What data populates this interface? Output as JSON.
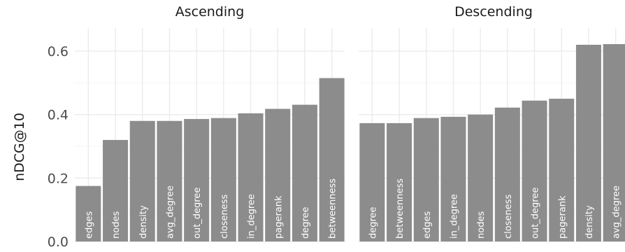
{
  "chart_data": {
    "type": "bar",
    "ylabel": "nDCG@10",
    "ylim": [
      0,
      0.65
    ],
    "yticks": [
      "0.0",
      "0.2",
      "0.4",
      "0.6"
    ],
    "bar_color": "#8c8c8c",
    "label_color": "#ffffff",
    "grid": true,
    "panels": [
      {
        "title": "Ascending",
        "categories": [
          "edges",
          "nodes",
          "density",
          "avg_degree",
          "out_degree",
          "closeness",
          "in_degree",
          "pagerank",
          "degree",
          "betweenness"
        ],
        "values": [
          0.175,
          0.32,
          0.38,
          0.38,
          0.386,
          0.389,
          0.404,
          0.418,
          0.431,
          0.515
        ]
      },
      {
        "title": "Descending",
        "categories": [
          "degree",
          "betweenness",
          "edges",
          "in_degree",
          "nodes",
          "closeness",
          "out_degree",
          "pagerank",
          "density",
          "avg_degree"
        ],
        "values": [
          0.373,
          0.373,
          0.389,
          0.393,
          0.4,
          0.422,
          0.444,
          0.45,
          0.62,
          0.622
        ]
      }
    ]
  }
}
